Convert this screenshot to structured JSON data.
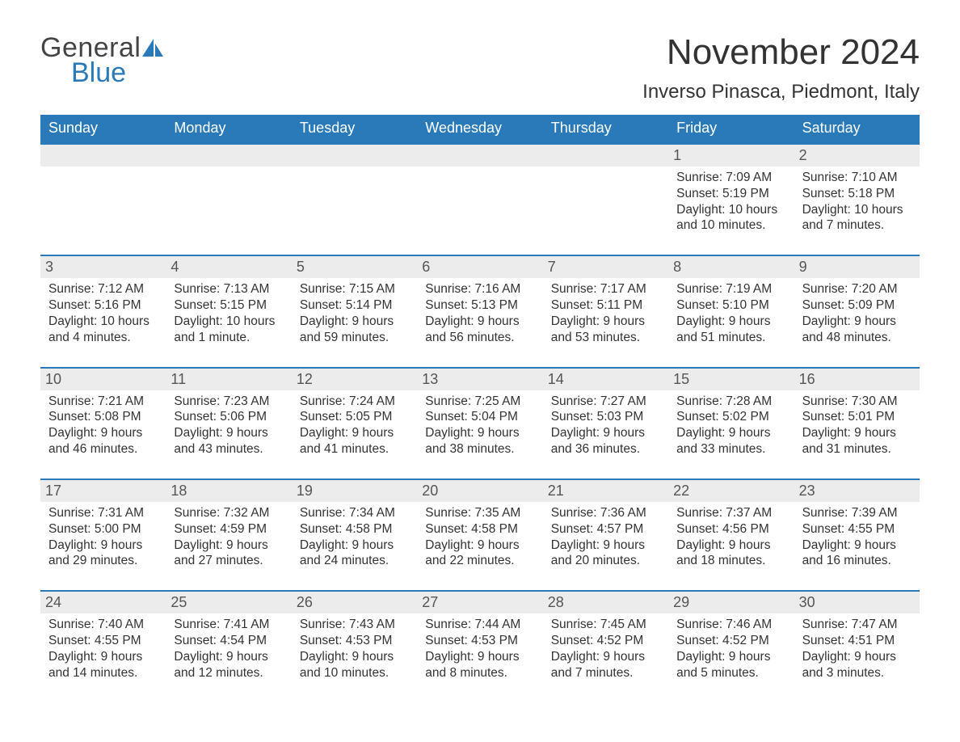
{
  "brand": {
    "part1": "General",
    "part2": "Blue",
    "accent_color": "#2a7ab9"
  },
  "title": {
    "month": "November 2024",
    "location": "Inverso Pinasca, Piedmont, Italy"
  },
  "colors": {
    "header_bg": "#2a7ab9",
    "header_text": "#ffffff",
    "daybar_bg": "#ececec",
    "daybar_border": "#2a7ab9",
    "body_text": "#333333",
    "page_bg": "#ffffff"
  },
  "layout": {
    "columns": 7,
    "weeks": 5,
    "start_day": "Sunday"
  },
  "weekdays": [
    "Sunday",
    "Monday",
    "Tuesday",
    "Wednesday",
    "Thursday",
    "Friday",
    "Saturday"
  ],
  "days": [
    {
      "n": "",
      "empty": true
    },
    {
      "n": "",
      "empty": true
    },
    {
      "n": "",
      "empty": true
    },
    {
      "n": "",
      "empty": true
    },
    {
      "n": "",
      "empty": true
    },
    {
      "n": "1",
      "sunrise": "Sunrise: 7:09 AM",
      "sunset": "Sunset: 5:19 PM",
      "dl1": "Daylight: 10 hours",
      "dl2": "and 10 minutes."
    },
    {
      "n": "2",
      "sunrise": "Sunrise: 7:10 AM",
      "sunset": "Sunset: 5:18 PM",
      "dl1": "Daylight: 10 hours",
      "dl2": "and 7 minutes."
    },
    {
      "n": "3",
      "sunrise": "Sunrise: 7:12 AM",
      "sunset": "Sunset: 5:16 PM",
      "dl1": "Daylight: 10 hours",
      "dl2": "and 4 minutes."
    },
    {
      "n": "4",
      "sunrise": "Sunrise: 7:13 AM",
      "sunset": "Sunset: 5:15 PM",
      "dl1": "Daylight: 10 hours",
      "dl2": "and 1 minute."
    },
    {
      "n": "5",
      "sunrise": "Sunrise: 7:15 AM",
      "sunset": "Sunset: 5:14 PM",
      "dl1": "Daylight: 9 hours",
      "dl2": "and 59 minutes."
    },
    {
      "n": "6",
      "sunrise": "Sunrise: 7:16 AM",
      "sunset": "Sunset: 5:13 PM",
      "dl1": "Daylight: 9 hours",
      "dl2": "and 56 minutes."
    },
    {
      "n": "7",
      "sunrise": "Sunrise: 7:17 AM",
      "sunset": "Sunset: 5:11 PM",
      "dl1": "Daylight: 9 hours",
      "dl2": "and 53 minutes."
    },
    {
      "n": "8",
      "sunrise": "Sunrise: 7:19 AM",
      "sunset": "Sunset: 5:10 PM",
      "dl1": "Daylight: 9 hours",
      "dl2": "and 51 minutes."
    },
    {
      "n": "9",
      "sunrise": "Sunrise: 7:20 AM",
      "sunset": "Sunset: 5:09 PM",
      "dl1": "Daylight: 9 hours",
      "dl2": "and 48 minutes."
    },
    {
      "n": "10",
      "sunrise": "Sunrise: 7:21 AM",
      "sunset": "Sunset: 5:08 PM",
      "dl1": "Daylight: 9 hours",
      "dl2": "and 46 minutes."
    },
    {
      "n": "11",
      "sunrise": "Sunrise: 7:23 AM",
      "sunset": "Sunset: 5:06 PM",
      "dl1": "Daylight: 9 hours",
      "dl2": "and 43 minutes."
    },
    {
      "n": "12",
      "sunrise": "Sunrise: 7:24 AM",
      "sunset": "Sunset: 5:05 PM",
      "dl1": "Daylight: 9 hours",
      "dl2": "and 41 minutes."
    },
    {
      "n": "13",
      "sunrise": "Sunrise: 7:25 AM",
      "sunset": "Sunset: 5:04 PM",
      "dl1": "Daylight: 9 hours",
      "dl2": "and 38 minutes."
    },
    {
      "n": "14",
      "sunrise": "Sunrise: 7:27 AM",
      "sunset": "Sunset: 5:03 PM",
      "dl1": "Daylight: 9 hours",
      "dl2": "and 36 minutes."
    },
    {
      "n": "15",
      "sunrise": "Sunrise: 7:28 AM",
      "sunset": "Sunset: 5:02 PM",
      "dl1": "Daylight: 9 hours",
      "dl2": "and 33 minutes."
    },
    {
      "n": "16",
      "sunrise": "Sunrise: 7:30 AM",
      "sunset": "Sunset: 5:01 PM",
      "dl1": "Daylight: 9 hours",
      "dl2": "and 31 minutes."
    },
    {
      "n": "17",
      "sunrise": "Sunrise: 7:31 AM",
      "sunset": "Sunset: 5:00 PM",
      "dl1": "Daylight: 9 hours",
      "dl2": "and 29 minutes."
    },
    {
      "n": "18",
      "sunrise": "Sunrise: 7:32 AM",
      "sunset": "Sunset: 4:59 PM",
      "dl1": "Daylight: 9 hours",
      "dl2": "and 27 minutes."
    },
    {
      "n": "19",
      "sunrise": "Sunrise: 7:34 AM",
      "sunset": "Sunset: 4:58 PM",
      "dl1": "Daylight: 9 hours",
      "dl2": "and 24 minutes."
    },
    {
      "n": "20",
      "sunrise": "Sunrise: 7:35 AM",
      "sunset": "Sunset: 4:58 PM",
      "dl1": "Daylight: 9 hours",
      "dl2": "and 22 minutes."
    },
    {
      "n": "21",
      "sunrise": "Sunrise: 7:36 AM",
      "sunset": "Sunset: 4:57 PM",
      "dl1": "Daylight: 9 hours",
      "dl2": "and 20 minutes."
    },
    {
      "n": "22",
      "sunrise": "Sunrise: 7:37 AM",
      "sunset": "Sunset: 4:56 PM",
      "dl1": "Daylight: 9 hours",
      "dl2": "and 18 minutes."
    },
    {
      "n": "23",
      "sunrise": "Sunrise: 7:39 AM",
      "sunset": "Sunset: 4:55 PM",
      "dl1": "Daylight: 9 hours",
      "dl2": "and 16 minutes."
    },
    {
      "n": "24",
      "sunrise": "Sunrise: 7:40 AM",
      "sunset": "Sunset: 4:55 PM",
      "dl1": "Daylight: 9 hours",
      "dl2": "and 14 minutes."
    },
    {
      "n": "25",
      "sunrise": "Sunrise: 7:41 AM",
      "sunset": "Sunset: 4:54 PM",
      "dl1": "Daylight: 9 hours",
      "dl2": "and 12 minutes."
    },
    {
      "n": "26",
      "sunrise": "Sunrise: 7:43 AM",
      "sunset": "Sunset: 4:53 PM",
      "dl1": "Daylight: 9 hours",
      "dl2": "and 10 minutes."
    },
    {
      "n": "27",
      "sunrise": "Sunrise: 7:44 AM",
      "sunset": "Sunset: 4:53 PM",
      "dl1": "Daylight: 9 hours",
      "dl2": "and 8 minutes."
    },
    {
      "n": "28",
      "sunrise": "Sunrise: 7:45 AM",
      "sunset": "Sunset: 4:52 PM",
      "dl1": "Daylight: 9 hours",
      "dl2": "and 7 minutes."
    },
    {
      "n": "29",
      "sunrise": "Sunrise: 7:46 AM",
      "sunset": "Sunset: 4:52 PM",
      "dl1": "Daylight: 9 hours",
      "dl2": "and 5 minutes."
    },
    {
      "n": "30",
      "sunrise": "Sunrise: 7:47 AM",
      "sunset": "Sunset: 4:51 PM",
      "dl1": "Daylight: 9 hours",
      "dl2": "and 3 minutes."
    }
  ]
}
